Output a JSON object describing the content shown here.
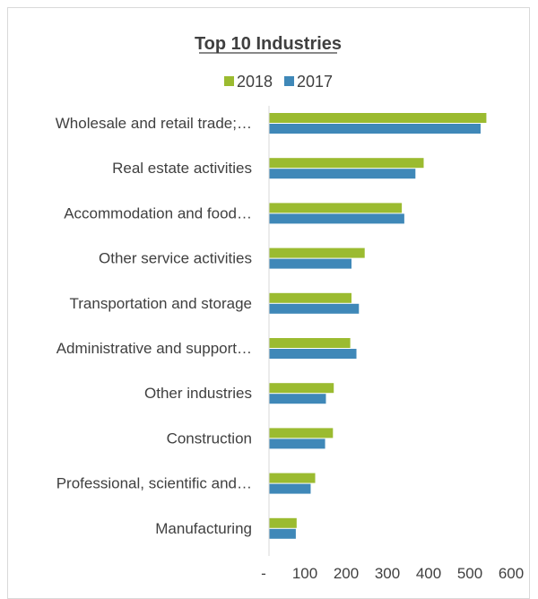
{
  "chart_data": {
    "type": "bar",
    "orientation": "horizontal",
    "title": "Top 10 Industries",
    "categories": [
      "Wholesale and retail trade;…",
      "Real estate activities",
      "Accommodation and food…",
      "Other service activities",
      "Transportation and storage",
      "Administrative and support…",
      "Other industries",
      "Construction",
      "Professional, scientific and…",
      "Manufacturing"
    ],
    "series": [
      {
        "name": "2018",
        "color": "#9bbb30",
        "values": [
          527,
          375,
          322,
          232,
          200,
          197,
          157,
          155,
          112,
          67
        ]
      },
      {
        "name": "2017",
        "color": "#3f88b8",
        "values": [
          513,
          355,
          328,
          200,
          218,
          212,
          138,
          136,
          101,
          65
        ]
      }
    ],
    "xlim": [
      0,
      600
    ],
    "xticks": [
      "-",
      "100",
      "200",
      "300",
      "400",
      "500",
      "600"
    ],
    "xtick_values": [
      0,
      100,
      200,
      300,
      400,
      500,
      600
    ],
    "legend_position": "top",
    "grid": false
  }
}
